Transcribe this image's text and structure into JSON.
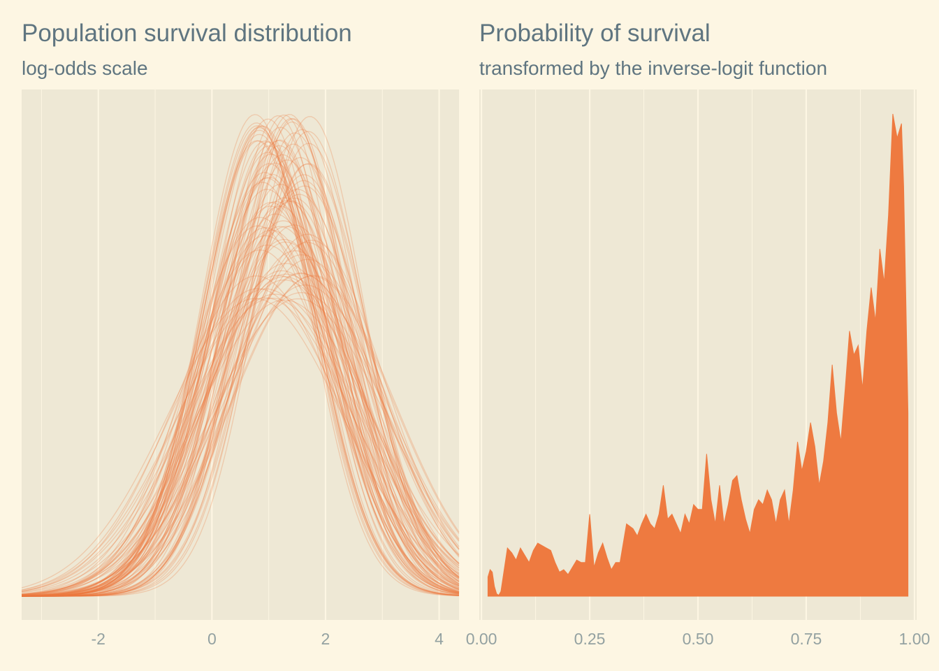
{
  "chart_data": [
    {
      "type": "line",
      "title": "Population survival distribution",
      "subtitle": "log-odds scale",
      "xlabel": "",
      "ylabel": "",
      "xlim": [
        -3.35,
        4.35
      ],
      "xticks": [
        -2,
        0,
        2,
        4
      ],
      "tick_labels": [
        "-2",
        "0",
        "2",
        "4"
      ],
      "grid": true,
      "n_curves": 100,
      "mean_range": [
        0.75,
        1.8
      ],
      "sd_range": [
        0.95,
        1.55
      ],
      "line_color": "#ee7a40"
    },
    {
      "type": "area",
      "title": "Probability of survival",
      "subtitle": "transformed by the inverse-logit function",
      "xlabel": "",
      "ylabel": "",
      "xlim": [
        -0.005,
        1.005
      ],
      "xticks": [
        0,
        0.25,
        0.5,
        0.75,
        1
      ],
      "tick_labels": [
        "0.00",
        "0.25",
        "0.50",
        "0.75",
        "1.00"
      ],
      "grid": true,
      "fill_color": "#ee7a40",
      "points": [
        [
          0.015,
          0.04
        ],
        [
          0.02,
          0.055
        ],
        [
          0.025,
          0.05
        ],
        [
          0.03,
          0.02
        ],
        [
          0.035,
          0.005
        ],
        [
          0.04,
          0.002
        ],
        [
          0.045,
          0.01
        ],
        [
          0.05,
          0.04
        ],
        [
          0.06,
          0.1
        ],
        [
          0.07,
          0.09
        ],
        [
          0.08,
          0.075
        ],
        [
          0.09,
          0.1
        ],
        [
          0.1,
          0.085
        ],
        [
          0.11,
          0.07
        ],
        [
          0.12,
          0.095
        ],
        [
          0.13,
          0.11
        ],
        [
          0.14,
          0.105
        ],
        [
          0.15,
          0.1
        ],
        [
          0.16,
          0.095
        ],
        [
          0.17,
          0.07
        ],
        [
          0.18,
          0.05
        ],
        [
          0.19,
          0.055
        ],
        [
          0.2,
          0.045
        ],
        [
          0.21,
          0.06
        ],
        [
          0.22,
          0.075
        ],
        [
          0.23,
          0.07
        ],
        [
          0.24,
          0.07
        ],
        [
          0.25,
          0.17
        ],
        [
          0.26,
          0.06
        ],
        [
          0.27,
          0.09
        ],
        [
          0.28,
          0.11
        ],
        [
          0.29,
          0.08
        ],
        [
          0.3,
          0.055
        ],
        [
          0.31,
          0.07
        ],
        [
          0.32,
          0.07
        ],
        [
          0.335,
          0.15
        ],
        [
          0.35,
          0.14
        ],
        [
          0.36,
          0.125
        ],
        [
          0.37,
          0.15
        ],
        [
          0.38,
          0.17
        ],
        [
          0.39,
          0.15
        ],
        [
          0.4,
          0.14
        ],
        [
          0.41,
          0.17
        ],
        [
          0.42,
          0.23
        ],
        [
          0.43,
          0.16
        ],
        [
          0.44,
          0.17
        ],
        [
          0.45,
          0.15
        ],
        [
          0.46,
          0.13
        ],
        [
          0.47,
          0.17
        ],
        [
          0.48,
          0.15
        ],
        [
          0.49,
          0.19
        ],
        [
          0.5,
          0.18
        ],
        [
          0.51,
          0.18
        ],
        [
          0.52,
          0.295
        ],
        [
          0.53,
          0.2
        ],
        [
          0.54,
          0.15
        ],
        [
          0.55,
          0.23
        ],
        [
          0.56,
          0.15
        ],
        [
          0.57,
          0.19
        ],
        [
          0.58,
          0.24
        ],
        [
          0.59,
          0.25
        ],
        [
          0.6,
          0.2
        ],
        [
          0.61,
          0.16
        ],
        [
          0.62,
          0.13
        ],
        [
          0.63,
          0.18
        ],
        [
          0.64,
          0.2
        ],
        [
          0.65,
          0.19
        ],
        [
          0.66,
          0.22
        ],
        [
          0.67,
          0.2
        ],
        [
          0.68,
          0.15
        ],
        [
          0.69,
          0.2
        ],
        [
          0.7,
          0.22
        ],
        [
          0.71,
          0.15
        ],
        [
          0.72,
          0.22
        ],
        [
          0.73,
          0.32
        ],
        [
          0.74,
          0.26
        ],
        [
          0.75,
          0.3
        ],
        [
          0.76,
          0.36
        ],
        [
          0.77,
          0.31
        ],
        [
          0.78,
          0.23
        ],
        [
          0.79,
          0.28
        ],
        [
          0.8,
          0.36
        ],
        [
          0.81,
          0.48
        ],
        [
          0.82,
          0.38
        ],
        [
          0.83,
          0.32
        ],
        [
          0.84,
          0.43
        ],
        [
          0.85,
          0.55
        ],
        [
          0.86,
          0.5
        ],
        [
          0.87,
          0.52
        ],
        [
          0.88,
          0.43
        ],
        [
          0.89,
          0.55
        ],
        [
          0.9,
          0.64
        ],
        [
          0.91,
          0.57
        ],
        [
          0.92,
          0.72
        ],
        [
          0.93,
          0.65
        ],
        [
          0.94,
          0.79
        ],
        [
          0.95,
          1.0
        ],
        [
          0.96,
          0.95
        ],
        [
          0.97,
          0.98
        ],
        [
          0.975,
          0.85
        ],
        [
          0.98,
          0.62
        ],
        [
          0.985,
          0.38
        ]
      ]
    }
  ]
}
